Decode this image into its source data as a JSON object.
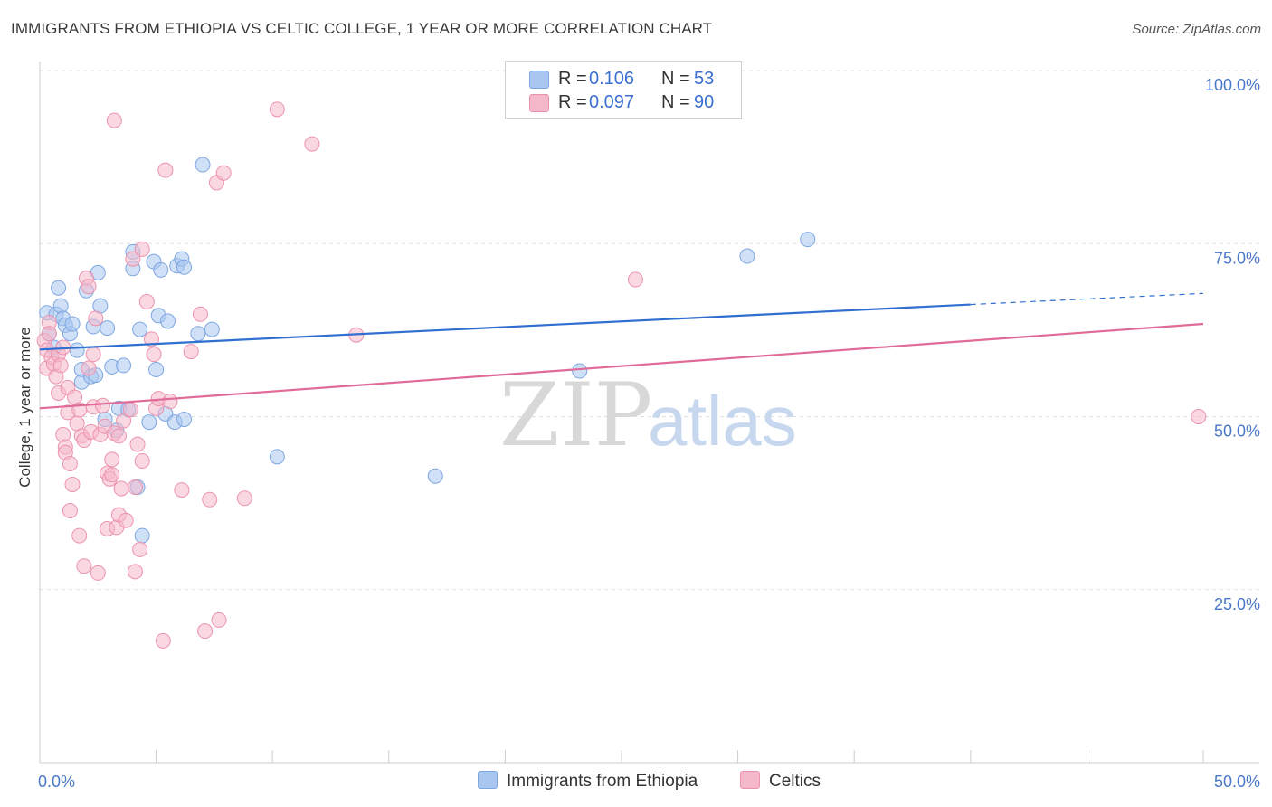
{
  "chart_data": {
    "type": "scatter",
    "title": "IMMIGRANTS FROM ETHIOPIA VS CELTIC COLLEGE, 1 YEAR OR MORE CORRELATION CHART",
    "source": "Source: ZipAtlas.com",
    "xlabel": "",
    "ylabel": "College, 1 year or more",
    "xlim": [
      0,
      50
    ],
    "ylim": [
      0,
      100
    ],
    "x_tick_labels": [
      "0.0%",
      "50.0%"
    ],
    "y_ticks": [
      25,
      50,
      75,
      100
    ],
    "y_tick_labels": [
      "25.0%",
      "50.0%",
      "75.0%",
      "100.0%"
    ],
    "grid": true,
    "watermark": {
      "part1": "ZIP",
      "part2": "atlas"
    },
    "legend": {
      "position": "top-center",
      "r_label": "R =",
      "n_label": "N =",
      "entries": [
        {
          "name": "Immigrants from Ethiopia",
          "r": "0.106",
          "n": "53",
          "color": "#a8c6f0"
        },
        {
          "name": "Celtics",
          "r": "0.097",
          "n": "90",
          "color": "#f5b8cb"
        }
      ]
    },
    "series": [
      {
        "name": "Immigrants from Ethiopia",
        "color": "#a8c6f0",
        "stroke": "#7ea6e0",
        "trend_color": "#2f6fd0",
        "trend": {
          "x0": 0,
          "y0": 59.7,
          "x1": 40,
          "y1": 66.2,
          "x_dash_end": 50,
          "y_dash_end": 67.8
        },
        "points": [
          [
            0.3,
            65.0
          ],
          [
            0.4,
            62.0
          ],
          [
            0.6,
            60.0
          ],
          [
            0.7,
            64.8
          ],
          [
            0.8,
            68.6
          ],
          [
            0.9,
            66.0
          ],
          [
            1.0,
            64.2
          ],
          [
            1.1,
            63.2
          ],
          [
            1.3,
            62.0
          ],
          [
            1.4,
            63.4
          ],
          [
            1.6,
            59.6
          ],
          [
            1.8,
            56.8
          ],
          [
            1.8,
            55.0
          ],
          [
            2.0,
            68.2
          ],
          [
            2.2,
            55.8
          ],
          [
            2.3,
            63.0
          ],
          [
            2.4,
            56.0
          ],
          [
            2.5,
            70.8
          ],
          [
            2.6,
            66.0
          ],
          [
            2.8,
            49.6
          ],
          [
            2.9,
            62.8
          ],
          [
            3.1,
            57.2
          ],
          [
            3.3,
            48.0
          ],
          [
            3.4,
            51.2
          ],
          [
            3.6,
            57.4
          ],
          [
            3.8,
            51.0
          ],
          [
            4.0,
            73.8
          ],
          [
            4.0,
            71.4
          ],
          [
            4.2,
            39.8
          ],
          [
            4.3,
            62.6
          ],
          [
            4.4,
            32.8
          ],
          [
            4.7,
            49.2
          ],
          [
            4.9,
            72.4
          ],
          [
            5.1,
            64.6
          ],
          [
            5.0,
            56.8
          ],
          [
            5.2,
            71.2
          ],
          [
            5.4,
            50.4
          ],
          [
            5.5,
            63.8
          ],
          [
            5.8,
            49.2
          ],
          [
            5.9,
            71.8
          ],
          [
            6.1,
            72.8
          ],
          [
            6.2,
            49.6
          ],
          [
            6.2,
            71.6
          ],
          [
            6.8,
            62.0
          ],
          [
            7.0,
            86.4
          ],
          [
            7.4,
            62.6
          ],
          [
            10.2,
            44.2
          ],
          [
            17.0,
            41.4
          ],
          [
            23.2,
            56.6
          ],
          [
            30.4,
            73.2
          ],
          [
            33.0,
            75.6
          ]
        ]
      },
      {
        "name": "Celtics",
        "color": "#f5b8cb",
        "stroke": "#ec93ae",
        "trend_color": "#e06b98",
        "trend": {
          "x0": 0,
          "y0": 51.2,
          "x1": 50,
          "y1": 63.4
        },
        "points": [
          [
            0.2,
            61.0
          ],
          [
            0.3,
            59.6
          ],
          [
            0.3,
            57.0
          ],
          [
            0.4,
            63.6
          ],
          [
            0.4,
            62.0
          ],
          [
            0.5,
            58.6
          ],
          [
            0.6,
            57.6
          ],
          [
            0.7,
            55.8
          ],
          [
            0.8,
            59.0
          ],
          [
            0.8,
            53.4
          ],
          [
            0.9,
            57.4
          ],
          [
            1.0,
            60.0
          ],
          [
            1.0,
            47.4
          ],
          [
            1.1,
            45.6
          ],
          [
            1.1,
            44.8
          ],
          [
            1.2,
            54.2
          ],
          [
            1.2,
            50.6
          ],
          [
            1.3,
            43.2
          ],
          [
            1.3,
            36.4
          ],
          [
            1.4,
            40.2
          ],
          [
            1.5,
            52.8
          ],
          [
            1.6,
            49.0
          ],
          [
            1.7,
            51.0
          ],
          [
            1.7,
            32.8
          ],
          [
            1.8,
            47.2
          ],
          [
            1.9,
            46.6
          ],
          [
            1.9,
            28.4
          ],
          [
            2.0,
            70.0
          ],
          [
            2.1,
            68.8
          ],
          [
            2.1,
            57.0
          ],
          [
            2.2,
            47.8
          ],
          [
            2.3,
            59.0
          ],
          [
            2.3,
            51.4
          ],
          [
            2.4,
            64.2
          ],
          [
            2.5,
            27.4
          ],
          [
            2.6,
            47.4
          ],
          [
            2.7,
            51.6
          ],
          [
            2.8,
            48.6
          ],
          [
            2.9,
            33.8
          ],
          [
            2.9,
            41.8
          ],
          [
            3.0,
            41.0
          ],
          [
            3.1,
            43.8
          ],
          [
            3.1,
            41.6
          ],
          [
            3.2,
            92.8
          ],
          [
            3.2,
            47.6
          ],
          [
            3.3,
            34.0
          ],
          [
            3.4,
            35.8
          ],
          [
            3.4,
            47.2
          ],
          [
            3.5,
            39.6
          ],
          [
            3.6,
            49.4
          ],
          [
            3.7,
            35.0
          ],
          [
            3.9,
            51.0
          ],
          [
            4.0,
            72.8
          ],
          [
            4.1,
            27.6
          ],
          [
            4.1,
            39.8
          ],
          [
            4.2,
            46.0
          ],
          [
            4.3,
            30.8
          ],
          [
            4.4,
            43.6
          ],
          [
            4.4,
            74.2
          ],
          [
            4.6,
            66.6
          ],
          [
            4.8,
            61.2
          ],
          [
            4.9,
            59.0
          ],
          [
            5.0,
            51.2
          ],
          [
            5.1,
            52.6
          ],
          [
            5.3,
            17.6
          ],
          [
            5.4,
            85.6
          ],
          [
            5.6,
            52.2
          ],
          [
            6.1,
            39.4
          ],
          [
            6.5,
            59.4
          ],
          [
            6.9,
            64.8
          ],
          [
            7.1,
            19.0
          ],
          [
            7.3,
            38.0
          ],
          [
            7.6,
            83.8
          ],
          [
            7.7,
            20.6
          ],
          [
            7.9,
            85.2
          ],
          [
            8.8,
            38.2
          ],
          [
            10.2,
            94.4
          ],
          [
            11.7,
            89.4
          ],
          [
            13.6,
            61.8
          ],
          [
            25.6,
            69.8
          ],
          [
            49.8,
            50.0
          ]
        ]
      }
    ]
  }
}
